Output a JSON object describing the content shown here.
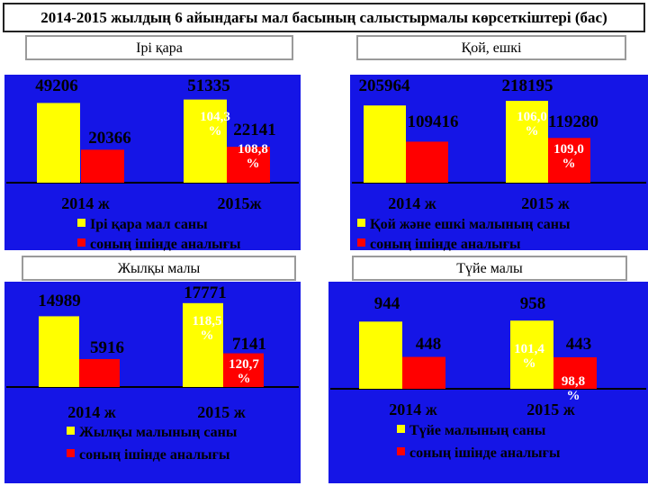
{
  "title": "2014-2015 жылдың  6 айындағы мал басының салыстырмалы көрсеткіштері (бас)",
  "colors": {
    "plot_bg": "#1515e6",
    "total": "#ffff00",
    "young": "#ff0000",
    "axis": "#000000"
  },
  "chart_data": [
    {
      "type": "bar",
      "panel_label": "Ірі қара",
      "categories": [
        "2014 ж",
        "2015ж"
      ],
      "series": [
        {
          "name": "Ірі қара мал саны",
          "values": [
            49206,
            51335
          ]
        },
        {
          "name": "соның ішінде аналығы",
          "values": [
            20366,
            22141
          ]
        }
      ],
      "annotations": [
        {
          "text": "104,3 %",
          "series": 0
        },
        {
          "text": "108,8  %",
          "series": 1
        }
      ],
      "ylim": [
        0,
        60000
      ]
    },
    {
      "type": "bar",
      "panel_label": "Қой,  ешкі",
      "categories": [
        "2014 ж",
        "2015 ж"
      ],
      "series": [
        {
          "name": "Қой және ешкі малының саны",
          "values": [
            205964,
            218195
          ]
        },
        {
          "name": "соның ішінде аналығы",
          "values": [
            109416,
            119280
          ]
        }
      ],
      "annotations": [
        {
          "text": "106,0 %",
          "series": 0
        },
        {
          "text": "109,0 %",
          "series": 1
        }
      ],
      "ylim": [
        0,
        240000
      ]
    },
    {
      "type": "bar",
      "panel_label": "Жылқы малы",
      "categories": [
        "2014 ж",
        "2015 ж"
      ],
      "series": [
        {
          "name": "Жылқы малының саны",
          "values": [
            14989,
            17771
          ]
        },
        {
          "name": "соның ішінде аналығы",
          "values": [
            5916,
            7141
          ]
        }
      ],
      "annotations": [
        {
          "text": "118,5 %",
          "series": 0
        },
        {
          "text": "120,7 %",
          "series": 1
        }
      ],
      "ylim": [
        0,
        18500
      ]
    },
    {
      "type": "bar",
      "panel_label": "Түйе малы",
      "categories": [
        "2014 ж",
        "2015 ж"
      ],
      "series": [
        {
          "name": "Түйе малының саны",
          "values": [
            944,
            958
          ]
        },
        {
          "name": "соның ішінде аналығы",
          "values": [
            448,
            443
          ]
        }
      ],
      "annotations": [
        {
          "text": "101,4 %",
          "series": 0
        },
        {
          "text": "98,8 %",
          "series": 1
        }
      ],
      "ylim": [
        0,
        1100
      ]
    }
  ]
}
